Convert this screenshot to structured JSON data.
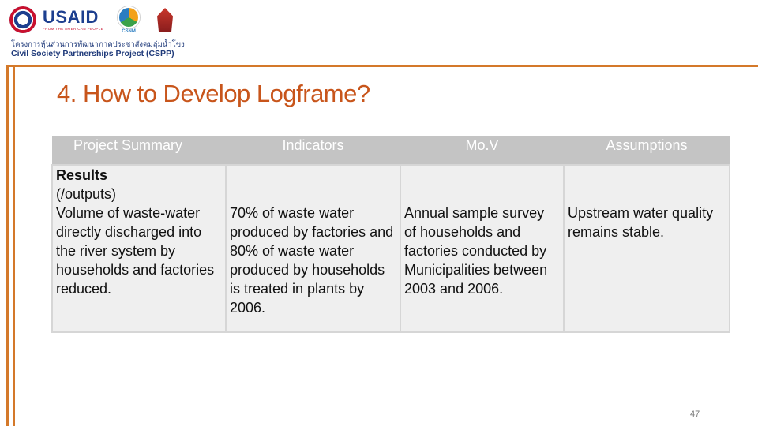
{
  "header": {
    "usaid_wordmark": "USAID",
    "usaid_tagline": "FROM THE AMERICAN PEOPLE",
    "cssm_label": "CSNM",
    "thai_line": "โครงการหุ้นส่วนการพัฒนาภาคประชาสังคมลุ่มน้ำโขง",
    "project_name": "Civil Society Partnerships Project (CSPP)"
  },
  "slide": {
    "title": "4. How to Develop Logframe?",
    "page_number": "47"
  },
  "table": {
    "headers": [
      "Project Summary",
      "Indicators",
      "Mo.V",
      "Assumptions"
    ],
    "row": {
      "summary_title_1": "Results",
      "summary_title_2": "(/outputs)",
      "summary_text": "Volume of waste-water directly discharged into the river system by households and factories reduced.",
      "indicators": "70% of waste water produced by factories and 80% of waste water produced by households is treated in plants by 2006.",
      "mov": "Annual sample survey of households and factories conducted by Municipalities between 2003 and 2006.",
      "assumptions": "Upstream water quality remains stable."
    }
  }
}
